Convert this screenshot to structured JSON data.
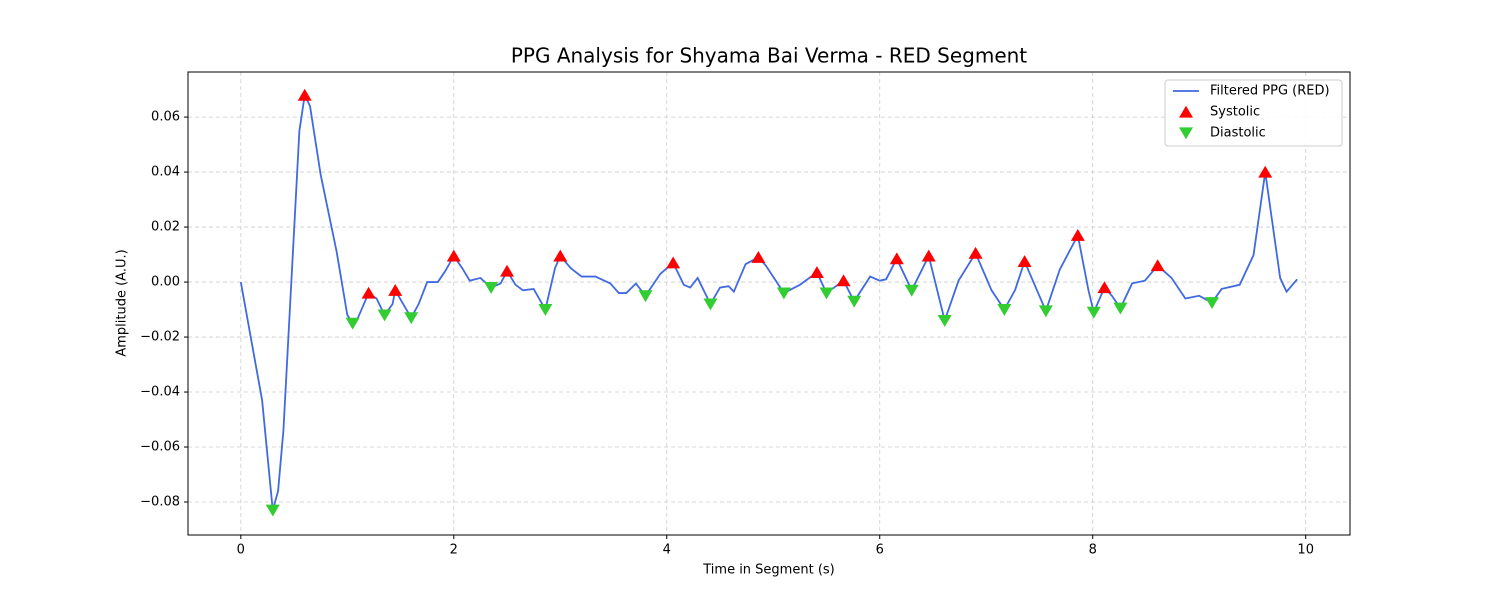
{
  "chart_data": {
    "type": "line",
    "title": "PPG Analysis for Shyama Bai Verma - RED Segment",
    "xlabel": "Time in Segment (s)",
    "ylabel": "Amplitude (A.U.)",
    "xlim": [
      -0.496,
      10.416
    ],
    "ylim": [
      -0.092,
      0.0764
    ],
    "xticks": [
      0,
      2,
      4,
      6,
      8,
      10
    ],
    "yticks": [
      {
        "value": -0.08,
        "label": "−0.08"
      },
      {
        "value": -0.06,
        "label": "−0.06"
      },
      {
        "value": -0.04,
        "label": "−0.04"
      },
      {
        "value": -0.02,
        "label": "−0.02"
      },
      {
        "value": 0,
        "label": "0.00"
      },
      0.02,
      0.04,
      0.06
    ],
    "grid": true,
    "legend": "upper right",
    "series": [
      {
        "name": "Filtered PPG (RED)",
        "type": "line",
        "color": "#4169e1",
        "x": [
          0,
          0.2,
          0.3,
          0.35,
          0.4,
          0.55,
          0.6,
          0.65,
          0.75,
          0.9,
          1.0,
          1.05,
          1.1,
          1.2,
          1.275,
          1.35,
          1.425,
          1.45,
          1.54,
          1.6,
          1.67,
          1.75,
          1.85,
          1.92,
          2.0,
          2.08,
          2.15,
          2.25,
          2.35,
          2.44,
          2.5,
          2.58,
          2.65,
          2.75,
          2.86,
          2.95,
          3.0,
          3.1,
          3.2,
          3.33,
          3.47,
          3.55,
          3.62,
          3.71,
          3.8,
          3.94,
          4.06,
          4.16,
          4.22,
          4.29,
          4.41,
          4.5,
          4.58,
          4.63,
          4.74,
          4.86,
          4.93,
          5.1,
          5.25,
          5.41,
          5.5,
          5.66,
          5.76,
          5.91,
          6.0,
          6.06,
          6.16,
          6.3,
          6.46,
          6.61,
          6.74,
          6.9,
          7.05,
          7.17,
          7.27,
          7.36,
          7.56,
          7.69,
          7.86,
          7.96,
          8.01,
          8.11,
          8.18,
          8.26,
          8.37,
          8.49,
          8.61,
          8.74,
          8.87,
          9.0,
          9.12,
          9.21,
          9.38,
          9.51,
          9.62,
          9.76,
          9.82,
          9.92
        ],
        "values": [
          0,
          -0.043,
          -0.083,
          -0.076,
          -0.054,
          0.055,
          0.068,
          0.064,
          0.039,
          0.011,
          -0.012,
          -0.015,
          -0.013,
          -0.004,
          -0.006,
          -0.012,
          -0.008,
          -0.003,
          -0.009,
          -0.013,
          -0.008,
          0.0,
          0.0,
          0.004,
          0.0095,
          0.005,
          0.0005,
          0.0015,
          -0.002,
          -0.0005,
          0.004,
          -0.001,
          -0.003,
          -0.0025,
          -0.01,
          0.005,
          0.0095,
          0.005,
          0.002,
          0.002,
          -0.0005,
          -0.004,
          -0.004,
          -0.0005,
          -0.005,
          0.003,
          0.007,
          -0.001,
          -0.002,
          0.0015,
          -0.008,
          -0.002,
          -0.0015,
          -0.0035,
          0.0065,
          0.009,
          0.006,
          -0.004,
          -0.001,
          0.0035,
          -0.004,
          0.0005,
          -0.007,
          0.002,
          0.0005,
          0.001,
          0.0085,
          -0.003,
          0.0095,
          -0.014,
          0.0005,
          0.0105,
          -0.003,
          -0.01,
          -0.003,
          0.0075,
          -0.0105,
          0.0045,
          0.017,
          -0.003,
          -0.011,
          -0.002,
          -0.005,
          -0.0095,
          -0.0005,
          0.0005,
          0.006,
          0.0015,
          -0.006,
          -0.005,
          -0.0075,
          -0.0025,
          -0.001,
          0.0098,
          0.04,
          0.0015,
          -0.0035,
          0.001
        ]
      },
      {
        "name": "Systolic",
        "type": "scatter",
        "marker": "^",
        "color": "#ff0000",
        "x": [
          0.6,
          1.2,
          1.45,
          2.0,
          2.5,
          3.0,
          4.06,
          4.86,
          5.41,
          5.66,
          6.16,
          6.46,
          6.9,
          7.36,
          7.86,
          8.11,
          8.61,
          9.62
        ],
        "values": [
          0.068,
          -0.004,
          -0.003,
          0.0095,
          0.004,
          0.0095,
          0.007,
          0.009,
          0.0035,
          0.0005,
          0.0085,
          0.0095,
          0.0105,
          0.0075,
          0.017,
          -0.002,
          0.006,
          0.04
        ]
      },
      {
        "name": "Diastolic",
        "type": "scatter",
        "marker": "v",
        "color": "#32cd32",
        "x": [
          0.3,
          1.05,
          1.35,
          1.6,
          2.35,
          2.86,
          3.8,
          4.41,
          5.1,
          5.5,
          5.76,
          6.3,
          6.61,
          7.17,
          7.56,
          8.01,
          8.26,
          9.12
        ],
        "values": [
          -0.083,
          -0.015,
          -0.012,
          -0.013,
          -0.002,
          -0.01,
          -0.005,
          -0.008,
          -0.004,
          -0.004,
          -0.007,
          -0.003,
          -0.014,
          -0.01,
          -0.0105,
          -0.011,
          -0.0095,
          -0.0075
        ]
      }
    ]
  }
}
